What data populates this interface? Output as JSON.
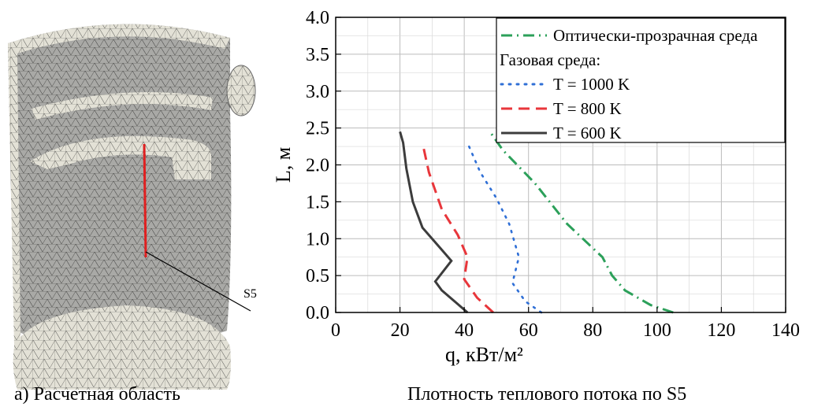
{
  "figure": {
    "left_caption": "а) Расчетная область",
    "right_caption": "Плотность теплового потока по S5",
    "mesh_label": "S5"
  },
  "colors": {
    "optical": "#2ca05a",
    "t1000": "#2f6fd6",
    "t800": "#e8363b",
    "t600": "#3c3c3c",
    "mesh_fill": "#e3e1d6",
    "mesh_shade": "#a9a9a6",
    "probe_line": "#e02020"
  },
  "chart_data": {
    "type": "line",
    "title": "",
    "xlabel": "q, кВт/м²",
    "ylabel": "L, м",
    "xlim": [
      0,
      140
    ],
    "ylim": [
      0,
      4.0
    ],
    "x_ticks": [
      "0",
      "20",
      "40",
      "60",
      "80",
      "100",
      "120",
      "140"
    ],
    "y_ticks": [
      "0.0",
      "0.5",
      "1.0",
      "1.5",
      "2.0",
      "2.5",
      "3.0",
      "3.5",
      "4.0"
    ],
    "grid": true,
    "legend_position": "top-right",
    "legend_subheader": "Газовая среда:",
    "series": [
      {
        "name": "Оптически-прозрачная среда",
        "style": "dash-dot",
        "color": "#2ca05a",
        "points": [
          [
            105,
            0.0
          ],
          [
            98,
            0.1
          ],
          [
            90,
            0.3
          ],
          [
            86,
            0.5
          ],
          [
            83,
            0.75
          ],
          [
            72,
            1.2
          ],
          [
            62,
            1.75
          ],
          [
            52,
            2.2
          ],
          [
            48,
            2.45
          ]
        ]
      },
      {
        "name": "T = 1000 K",
        "style": "dotted",
        "color": "#2f6fd6",
        "points": [
          [
            64,
            0.0
          ],
          [
            59,
            0.15
          ],
          [
            55,
            0.4
          ],
          [
            57,
            0.75
          ],
          [
            54,
            1.2
          ],
          [
            50,
            1.55
          ],
          [
            45,
            1.9
          ],
          [
            41,
            2.3
          ]
        ]
      },
      {
        "name": "T = 800 K",
        "style": "dashed",
        "color": "#e8363b",
        "points": [
          [
            49,
            0.0
          ],
          [
            44,
            0.2
          ],
          [
            40,
            0.45
          ],
          [
            41,
            0.75
          ],
          [
            38,
            1.05
          ],
          [
            33,
            1.4
          ],
          [
            29,
            1.9
          ],
          [
            27,
            2.3
          ]
        ]
      },
      {
        "name": "T = 600 K",
        "style": "solid",
        "color": "#3c3c3c",
        "points": [
          [
            41,
            0.0
          ],
          [
            37,
            0.15
          ],
          [
            33,
            0.3
          ],
          [
            31,
            0.42
          ],
          [
            36,
            0.7
          ],
          [
            32,
            0.9
          ],
          [
            27,
            1.15
          ],
          [
            24,
            1.5
          ],
          [
            22,
            1.95
          ],
          [
            21,
            2.3
          ],
          [
            20,
            2.45
          ]
        ]
      }
    ]
  }
}
